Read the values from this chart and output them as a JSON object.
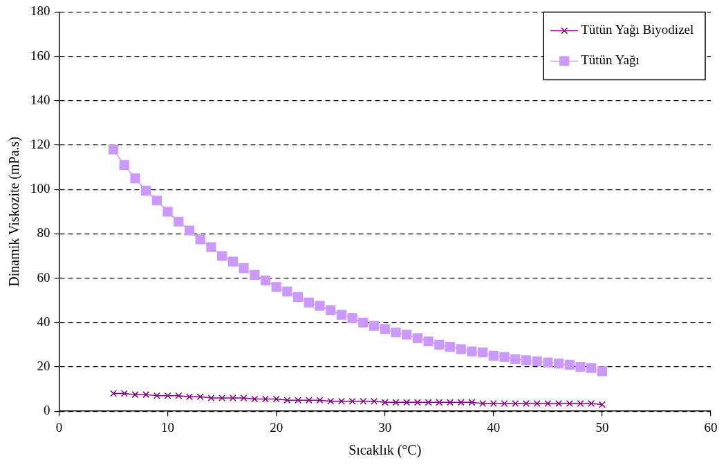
{
  "chart_data": {
    "type": "line",
    "xlabel": "Sıcaklık (°C)",
    "ylabel": "Dinamik Viskozite (mPa.s)",
    "x": [
      5,
      6,
      7,
      8,
      9,
      10,
      11,
      12,
      13,
      14,
      15,
      16,
      17,
      18,
      19,
      20,
      21,
      22,
      23,
      24,
      25,
      26,
      27,
      28,
      29,
      30,
      31,
      32,
      33,
      34,
      35,
      36,
      37,
      38,
      39,
      40,
      41,
      42,
      43,
      44,
      45,
      46,
      47,
      48,
      49,
      50
    ],
    "series": [
      {
        "name": "Tütün Yağı Biyodizel",
        "color": "#800080",
        "marker": "cross",
        "values": [
          8,
          8,
          7.5,
          7.5,
          7,
          7,
          7,
          6.5,
          6.5,
          6,
          6,
          6,
          6,
          5.5,
          5.5,
          5.5,
          5,
          5,
          5,
          5,
          4.5,
          4.5,
          4.5,
          4.5,
          4.5,
          4,
          4,
          4,
          4,
          4,
          4,
          4,
          4,
          4,
          3.5,
          3.5,
          3.5,
          3.5,
          3.5,
          3.5,
          3.5,
          3.5,
          3.5,
          3.5,
          3.5,
          3
        ]
      },
      {
        "name": "Tütün Yağı",
        "color": "#cc99ff",
        "marker": "square",
        "values": [
          118,
          111,
          105,
          99.5,
          95,
          90,
          85.5,
          81.5,
          77.5,
          74,
          70,
          67.5,
          64.5,
          61.5,
          59,
          56,
          54,
          51.5,
          49,
          47.5,
          45.5,
          43.5,
          42,
          40,
          38.5,
          37,
          35.5,
          34.5,
          33,
          31.5,
          30,
          29,
          28,
          27,
          26.5,
          25,
          24.5,
          23.5,
          23,
          22.5,
          22,
          21.5,
          21,
          20,
          19.5,
          18
        ]
      }
    ],
    "xlim": [
      0,
      60
    ],
    "xticks": [
      0,
      10,
      20,
      30,
      40,
      50,
      60
    ],
    "ylim": [
      0,
      180
    ],
    "yticks": [
      0,
      20,
      40,
      60,
      80,
      100,
      120,
      140,
      160,
      180
    ],
    "grid": "y",
    "legend": "top right",
    "line_style": "solid"
  }
}
